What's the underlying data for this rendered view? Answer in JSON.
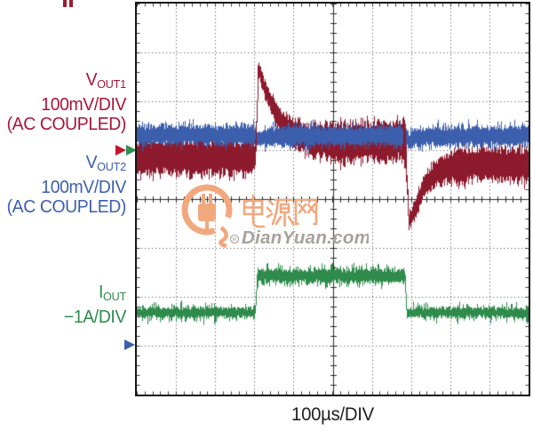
{
  "caption": "100µs/DIV",
  "top_mark": {
    "color": "#9e1a30"
  },
  "labels": {
    "vout1": {
      "sym": "V",
      "sub": "OUT1",
      "line2": "100mV/DIV",
      "line3": "(AC COUPLED)",
      "color": "#aa1438"
    },
    "vout2": {
      "sym": "V",
      "sub": "OUT2",
      "line2": "100mV/DIV",
      "line3": "(AC COUPLED)",
      "color": "#3d5fae"
    },
    "iout": {
      "sym": "I",
      "sub": "OUT",
      "line2": "−1A/DIV",
      "color": "#2e8b4c"
    }
  },
  "markers": {
    "vout1": {
      "color": "#c41430"
    },
    "iout": {
      "color": "#2f9050"
    },
    "vout2": {
      "color": "#3d5fae"
    }
  },
  "watermark": {
    "cn": "电源网",
    "site": "DianYuan.com",
    "reg": "®",
    "orange": "#f2a87d",
    "gray": "#a7a19c"
  },
  "chart_data": {
    "type": "line",
    "title": "Oscilloscope load-transient capture",
    "x_per_div": "100µs/DIV",
    "divisions": {
      "x": 10,
      "y": 8
    },
    "grid": "10x8 divisions, dotted minor gridlines, solid center crosshair axes with 1/5-div ticks, tick marks along borders",
    "events": {
      "load_step_rise_div": 3.05,
      "load_step_fall_div": 6.87
    },
    "series": [
      {
        "name": "VOUT1",
        "scale": "100mV/DIV",
        "coupling": "AC COUPLED",
        "color": "#8c1a2c",
        "behavior": "Switching-ripple band; ~1.6 div overshoot spike at load-step rise with exponential settling, ~1.6 div undershoot dip at load-step fall with recovery",
        "envelope": [
          [
            0,
            3.14,
            0.31
          ],
          [
            3.02,
            3.14,
            0.31
          ],
          [
            3.06,
            2.55,
            0.2
          ],
          [
            3.1,
            1.28,
            0.13
          ],
          [
            3.22,
            1.62,
            0.15
          ],
          [
            3.4,
            2.0,
            0.17
          ],
          [
            3.66,
            2.4,
            0.2
          ],
          [
            4.05,
            2.68,
            0.25
          ],
          [
            4.5,
            2.8,
            0.3
          ],
          [
            5.2,
            2.85,
            0.35
          ],
          [
            6.3,
            2.83,
            0.35
          ],
          [
            6.85,
            2.8,
            0.34
          ],
          [
            6.95,
            4.47,
            0.13
          ],
          [
            7.1,
            4.2,
            0.15
          ],
          [
            7.32,
            3.75,
            0.18
          ],
          [
            7.66,
            3.46,
            0.24
          ],
          [
            8.1,
            3.33,
            0.29
          ],
          [
            8.8,
            3.28,
            0.31
          ],
          [
            10,
            3.3,
            0.31
          ]
        ]
      },
      {
        "name": "VOUT2",
        "scale": "100mV/DIV",
        "coupling": "AC COUPLED",
        "color": "#3c5fad",
        "behavior": "Stays regulated; only slight deviation at the load edges",
        "envelope": [
          [
            0,
            2.69,
            0.17
          ],
          [
            3.0,
            2.69,
            0.17
          ],
          [
            3.12,
            2.79,
            0.15
          ],
          [
            3.35,
            2.72,
            0.17
          ],
          [
            6.8,
            2.7,
            0.17
          ],
          [
            6.97,
            2.81,
            0.15
          ],
          [
            7.25,
            2.72,
            0.17
          ],
          [
            10,
            2.7,
            0.17
          ]
        ]
      },
      {
        "name": "IOUT",
        "scale": "−1A/DIV",
        "coupling": "DC",
        "color": "#2e8b4c",
        "behavior": "Load current square step: low level, high level between 3.05 and 6.87 div, back to low",
        "envelope": [
          [
            0,
            6.32,
            0.09
          ],
          [
            3.02,
            6.32,
            0.09
          ],
          [
            3.08,
            5.57,
            0.12
          ],
          [
            6.84,
            5.57,
            0.12
          ],
          [
            6.9,
            6.32,
            0.09
          ],
          [
            10,
            6.32,
            0.09
          ]
        ]
      }
    ],
    "overdraw": [
      [
        0,
        2.98,
        3.26
      ],
      [
        0,
        6.82,
        7.08
      ]
    ]
  }
}
